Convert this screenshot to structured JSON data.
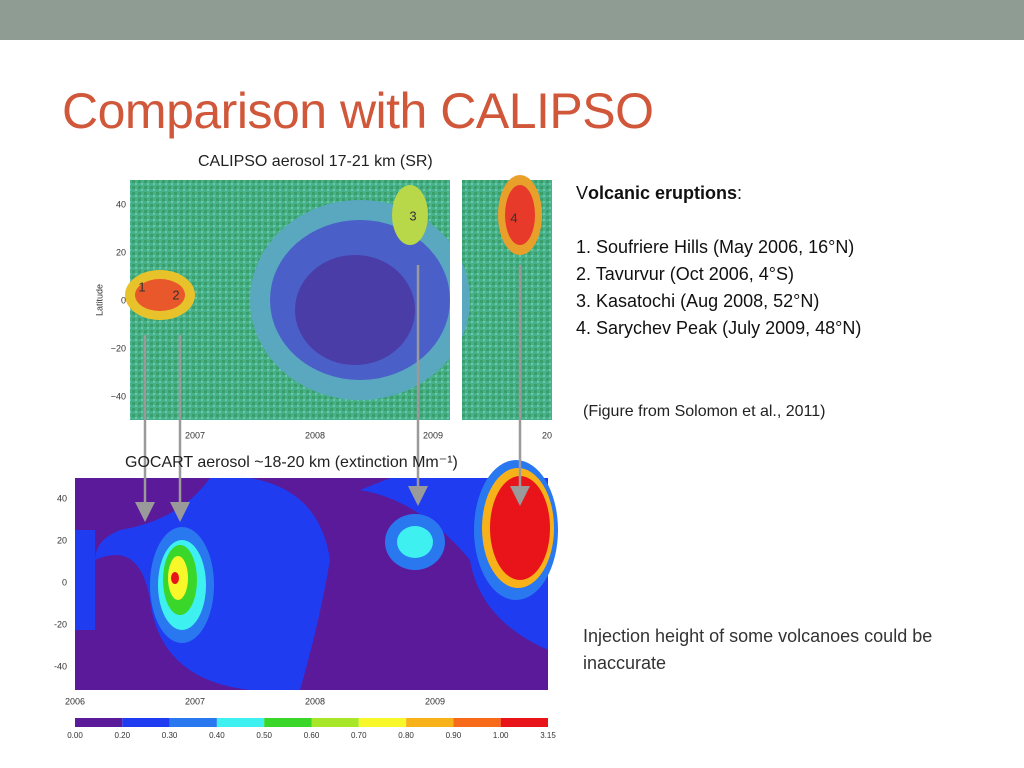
{
  "title": "Comparison with CALIPSO",
  "calipso": {
    "caption": "CALIPSO aerosol 17-21 km (SR)",
    "ylabel": "Latitude",
    "yticks": [
      "40",
      "20",
      "0",
      "−20",
      "−40"
    ],
    "xticks": [
      "2007",
      "2008",
      "2009",
      "20"
    ],
    "markers": [
      "1",
      "2",
      "3",
      "4"
    ]
  },
  "gocart": {
    "caption": "GOCART aerosol ~18-20 km (extinction Mm⁻¹)",
    "yticks": [
      "40",
      "20",
      "0",
      "-20",
      "-40"
    ],
    "xticks": [
      "2006",
      "2007",
      "2008",
      "2009"
    ],
    "colorbar": [
      "0.00",
      "0.20",
      "0.30",
      "0.40",
      "0.50",
      "0.60",
      "0.70",
      "0.80",
      "0.90",
      "1.00",
      "3.15"
    ]
  },
  "eruptions": {
    "heading_initial": "V",
    "heading": "olcanic eruptions",
    "heading_end": ":",
    "items": [
      "1. Soufriere Hills (May 2006, 16°N)",
      "2. Tavurvur (Oct 2006, 4°S)",
      "3. Kasatochi (Aug 2008, 52°N)",
      "4. Sarychev Peak (July 2009, 48°N)"
    ]
  },
  "source": "(Figure from Solomon et al., 2011)",
  "note": "Injection height of some volcanoes could be inaccurate"
}
